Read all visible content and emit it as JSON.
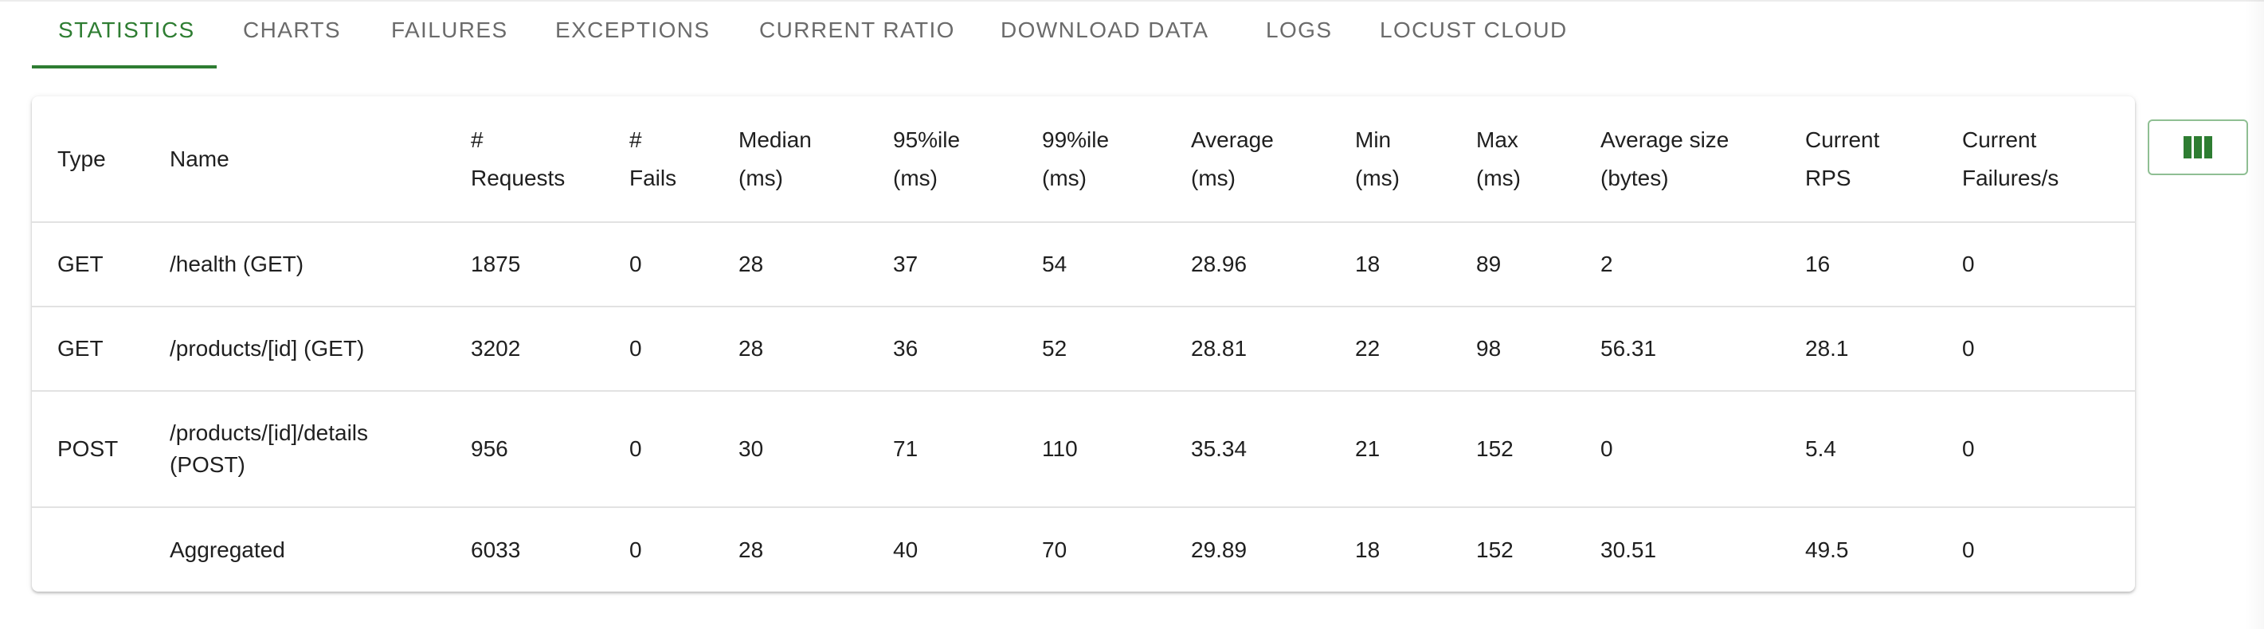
{
  "tabs": [
    {
      "label": "STATISTICS",
      "active": true
    },
    {
      "label": "CHARTS",
      "active": false
    },
    {
      "label": "FAILURES",
      "active": false
    },
    {
      "label": "EXCEPTIONS",
      "active": false
    },
    {
      "label": "CURRENT RATIO",
      "active": false
    },
    {
      "label": "DOWNLOAD DATA",
      "active": false
    },
    {
      "label": "LOGS",
      "active": false
    },
    {
      "label": "LOCUST CLOUD",
      "active": false
    }
  ],
  "accent_color": "#2e7d32",
  "columns": [
    {
      "line1": "Type",
      "line2": ""
    },
    {
      "line1": "Name",
      "line2": ""
    },
    {
      "line1": "#",
      "line2": "Requests"
    },
    {
      "line1": "#",
      "line2": "Fails"
    },
    {
      "line1": "Median",
      "line2": "(ms)"
    },
    {
      "line1": "95%ile",
      "line2": "(ms)"
    },
    {
      "line1": "99%ile",
      "line2": "(ms)"
    },
    {
      "line1": "Average",
      "line2": "(ms)"
    },
    {
      "line1": "Min",
      "line2": "(ms)"
    },
    {
      "line1": "Max",
      "line2": "(ms)"
    },
    {
      "line1": "Average size",
      "line2": "(bytes)"
    },
    {
      "line1": "Current",
      "line2": "RPS"
    },
    {
      "line1": "Current",
      "line2": "Failures/s"
    }
  ],
  "rows": [
    {
      "type": "GET",
      "name_line1": "/health (GET)",
      "name_line2": "",
      "requests": "1875",
      "fails": "0",
      "median": "28",
      "p95": "37",
      "p99": "54",
      "average": "28.96",
      "min": "18",
      "max": "89",
      "avg_size": "2",
      "rps": "16",
      "failures_s": "0"
    },
    {
      "type": "GET",
      "name_line1": "/products/[id] (GET)",
      "name_line2": "",
      "requests": "3202",
      "fails": "0",
      "median": "28",
      "p95": "36",
      "p99": "52",
      "average": "28.81",
      "min": "22",
      "max": "98",
      "avg_size": "56.31",
      "rps": "28.1",
      "failures_s": "0"
    },
    {
      "type": "POST",
      "name_line1": "/products/[id]/details",
      "name_line2": "(POST)",
      "requests": "956",
      "fails": "0",
      "median": "30",
      "p95": "71",
      "p99": "110",
      "average": "35.34",
      "min": "21",
      "max": "152",
      "avg_size": "0",
      "rps": "5.4",
      "failures_s": "0"
    },
    {
      "type": "",
      "name_line1": "Aggregated",
      "name_line2": "",
      "requests": "6033",
      "fails": "0",
      "median": "28",
      "p95": "40",
      "p99": "70",
      "average": "29.89",
      "min": "18",
      "max": "152",
      "avg_size": "30.51",
      "rps": "49.5",
      "failures_s": "0"
    }
  ],
  "column_toggle": {
    "icon": "view-column-icon"
  }
}
